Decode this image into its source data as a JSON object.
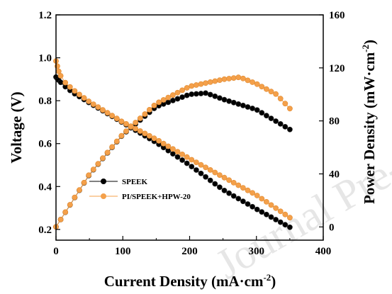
{
  "chart_data": {
    "type": "scatter",
    "xlabel": "Current Density (mA·cm",
    "xlabel_sup": "-2",
    "xlabel_end": ")",
    "ylabel": "Voltage (V)",
    "y2label": "Power Density (mW·cm",
    "y2label_sup": "-2",
    "y2label_end": ")",
    "xlim": [
      0,
      400
    ],
    "ylim": [
      0.15,
      1.2
    ],
    "y2lim": [
      -10,
      160
    ],
    "x_ticks": [
      0,
      100,
      200,
      300,
      400
    ],
    "x_tick_labels": [
      "0",
      "100",
      "200",
      "300",
      "400"
    ],
    "y_ticks": [
      0.2,
      0.4,
      0.6,
      0.8,
      1.0,
      1.2
    ],
    "y_tick_labels": [
      "0.2",
      "0.4",
      "0.6",
      "0.8",
      "1.0",
      "1.2"
    ],
    "y2_ticks": [
      0,
      40,
      80,
      120,
      160
    ],
    "y2_tick_labels": [
      "0",
      "40",
      "80",
      "120",
      "160"
    ],
    "grid": false,
    "legend_position": "lower-left",
    "watermark": "Journal Pre-proof",
    "series": [
      {
        "name": "SPEEK",
        "color": "#000000",
        "axis": "left",
        "kind": "voltage",
        "points": [
          [
            0,
            0.91
          ],
          [
            10,
            0.875
          ],
          [
            25,
            0.838
          ],
          [
            50,
            0.79
          ],
          [
            100,
            0.697
          ],
          [
            150,
            0.605
          ],
          [
            200,
            0.5
          ],
          [
            250,
            0.385
          ],
          [
            300,
            0.295
          ],
          [
            350,
            0.21
          ]
        ]
      },
      {
        "name": "PI/SPEEK+HPW-20",
        "color": "#f4a04a",
        "axis": "left",
        "kind": "voltage",
        "points": [
          [
            0,
            0.985
          ],
          [
            5,
            0.925
          ],
          [
            15,
            0.88
          ],
          [
            30,
            0.84
          ],
          [
            50,
            0.795
          ],
          [
            100,
            0.7
          ],
          [
            150,
            0.62
          ],
          [
            200,
            0.53
          ],
          [
            250,
            0.445
          ],
          [
            300,
            0.36
          ],
          [
            350,
            0.255
          ]
        ]
      },
      {
        "name": "SPEEK",
        "color": "#000000",
        "axis": "right",
        "kind": "power",
        "points": [
          [
            0,
            0
          ],
          [
            50,
            39.5
          ],
          [
            100,
            69.7
          ],
          [
            150,
            90.7
          ],
          [
            200,
            100
          ],
          [
            225,
            101
          ],
          [
            250,
            96.3
          ],
          [
            300,
            88.5
          ],
          [
            350,
            73.5
          ]
        ]
      },
      {
        "name": "PI/SPEEK+HPW-20",
        "color": "#f4a04a",
        "axis": "right",
        "kind": "power",
        "points": [
          [
            0,
            0
          ],
          [
            50,
            39.8
          ],
          [
            100,
            70
          ],
          [
            150,
            93
          ],
          [
            200,
            106
          ],
          [
            250,
            111.3
          ],
          [
            275,
            113
          ],
          [
            300,
            108
          ],
          [
            330,
            100
          ],
          [
            350,
            89.3
          ]
        ]
      }
    ]
  }
}
